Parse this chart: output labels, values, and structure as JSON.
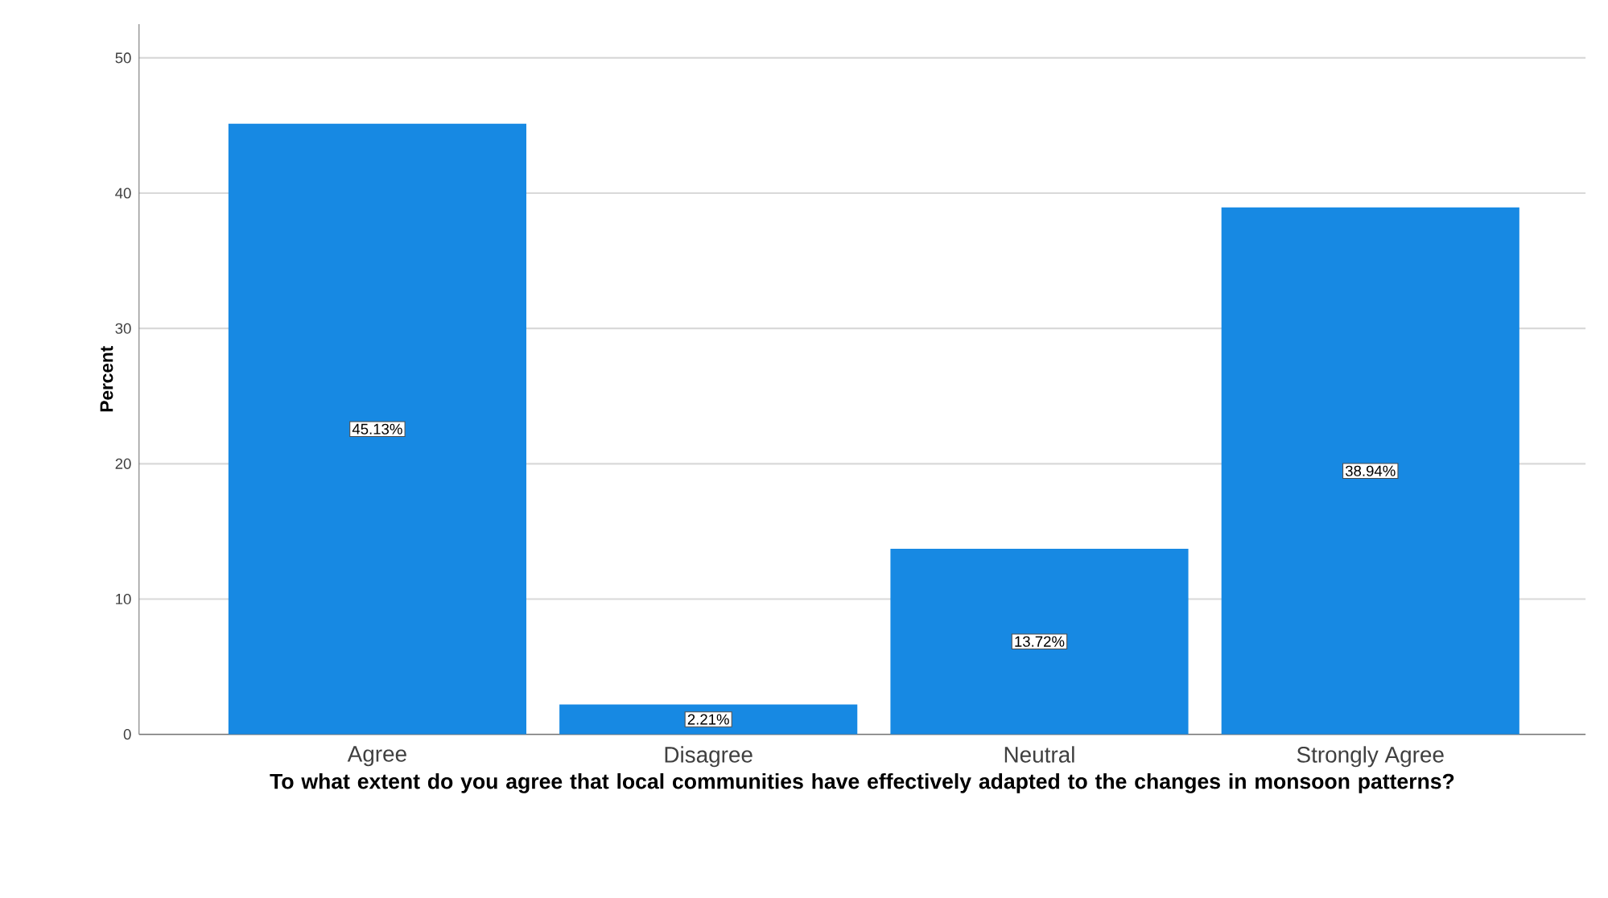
{
  "chart_data": {
    "type": "bar",
    "xlabel": "To what extent do you agree that local communities have effectively adapted to the changes in monsoon patterns?",
    "ylabel": "Percent",
    "categories": [
      "Agree",
      "Disagree",
      "Neutral",
      "Strongly Agree"
    ],
    "values": [
      45.13,
      2.21,
      13.72,
      38.94
    ],
    "value_labels": [
      "45.13%",
      "2.21%",
      "13.72%",
      "38.94%"
    ],
    "color": "#1789e3",
    "ylim": [
      0,
      52.5
    ],
    "yticks": [
      0,
      10,
      20,
      30,
      40,
      50
    ],
    "grid": "y"
  }
}
